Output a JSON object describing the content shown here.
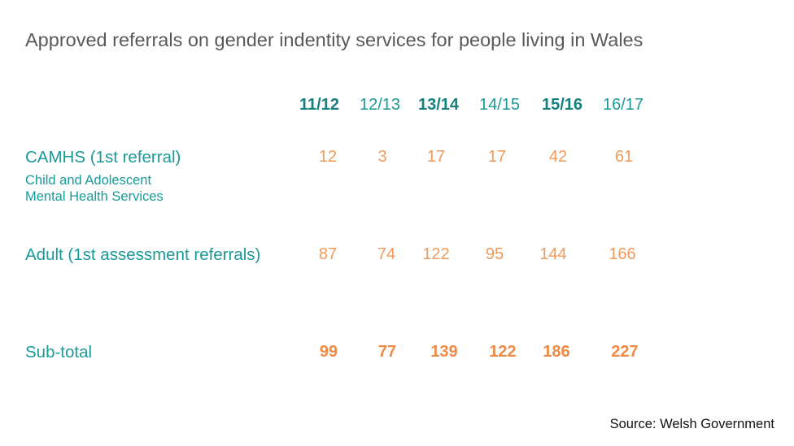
{
  "chart_data": {
    "type": "table",
    "title": "Approved referrals on gender indentity services for people living in Wales",
    "columns": [
      "11/12",
      "12/13",
      "13/14",
      "14/15",
      "15/16",
      "16/17"
    ],
    "rows": [
      {
        "label": "CAMHS (1st referral)",
        "sublabel": [
          "Child and Adolescent",
          "Mental Health Services"
        ],
        "values": [
          12,
          3,
          17,
          17,
          42,
          61
        ]
      },
      {
        "label": "Adult (1st assessment referrals)",
        "values": [
          87,
          74,
          122,
          95,
          144,
          166
        ]
      },
      {
        "label": "Sub-total",
        "values": [
          99,
          77,
          139,
          122,
          186,
          227
        ]
      }
    ],
    "source": "Source: Welsh Government",
    "colors": {
      "label": "#1a9a98",
      "header_bold": "#16807e",
      "value": "#f29a5c",
      "title": "#58595b"
    }
  }
}
